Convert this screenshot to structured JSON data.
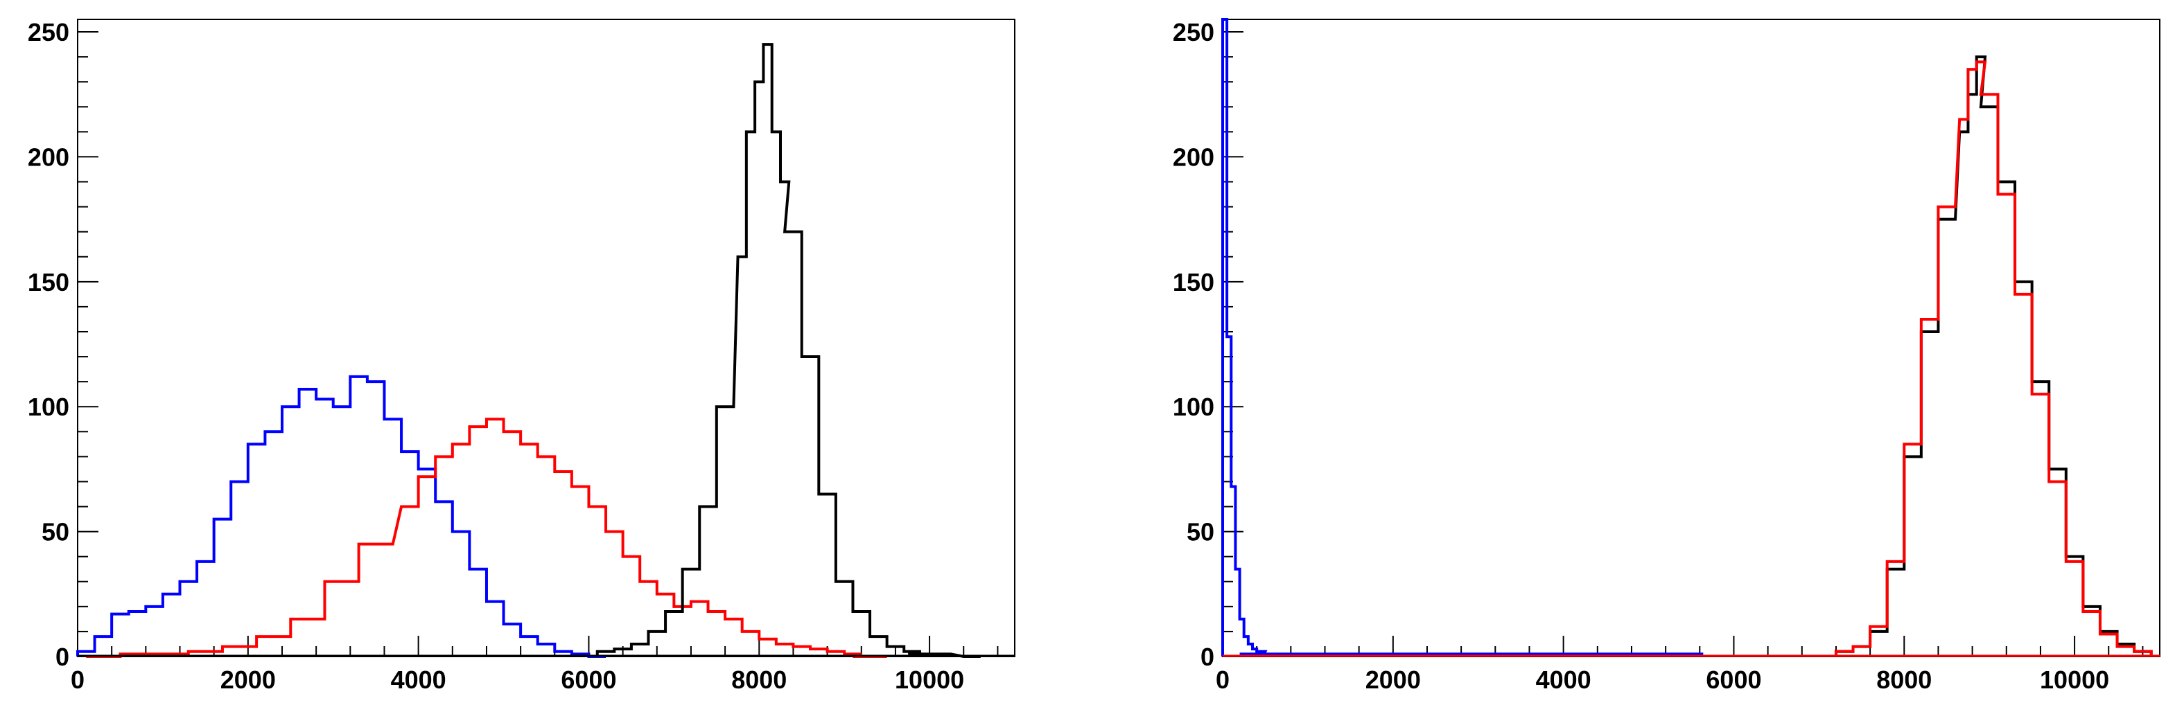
{
  "chart_data": [
    {
      "type": "histogram",
      "title": "",
      "xlabel": "",
      "ylabel": "",
      "xlim": [
        0,
        11000
      ],
      "ylim": [
        0,
        255
      ],
      "x_ticks": [
        0,
        2000,
        4000,
        6000,
        8000,
        10000
      ],
      "y_ticks": [
        0,
        50,
        100,
        150,
        200,
        250
      ],
      "grid": false,
      "legend": "none",
      "series": [
        {
          "color": "#0000ff",
          "bin_width": 50,
          "centers": [
            100,
            300,
            500,
            700,
            900,
            1100,
            1300,
            1500,
            1700,
            1900,
            2100,
            2300,
            2500,
            2700,
            2900,
            3100,
            3300,
            3500,
            3700,
            3900,
            4100,
            4300,
            4500,
            4700,
            4900,
            5100,
            5300,
            5500,
            5700,
            5900,
            6100
          ],
          "values": [
            2,
            8,
            17,
            18,
            20,
            25,
            30,
            38,
            55,
            70,
            85,
            90,
            100,
            107,
            103,
            100,
            112,
            110,
            95,
            82,
            75,
            62,
            50,
            35,
            22,
            13,
            8,
            5,
            2,
            1,
            0
          ]
        },
        {
          "color": "#ff0000",
          "bin_width": 50,
          "centers": [
            300,
            700,
            1100,
            1500,
            1900,
            2300,
            2700,
            3100,
            3500,
            3900,
            4100,
            4300,
            4500,
            4700,
            4900,
            5100,
            5300,
            5500,
            5700,
            5900,
            6100,
            6300,
            6500,
            6700,
            6900,
            7100,
            7300,
            7500,
            7700,
            7900,
            8100,
            8300,
            8500,
            8700,
            8900,
            9100,
            9300
          ],
          "values": [
            0,
            1,
            1,
            2,
            4,
            8,
            15,
            30,
            45,
            60,
            72,
            80,
            85,
            92,
            95,
            90,
            85,
            80,
            74,
            68,
            60,
            50,
            40,
            30,
            25,
            20,
            22,
            18,
            15,
            10,
            7,
            5,
            4,
            3,
            2,
            1,
            0
          ]
        },
        {
          "color": "#000000",
          "bin_width": 50,
          "centers": [
            6200,
            6400,
            6600,
            6800,
            7000,
            7200,
            7400,
            7600,
            7800,
            7900,
            8000,
            8100,
            8200,
            8300,
            8400,
            8600,
            8800,
            9000,
            9200,
            9400,
            9600,
            9800,
            10000,
            10500
          ],
          "values": [
            2,
            3,
            5,
            10,
            18,
            35,
            60,
            100,
            160,
            210,
            230,
            245,
            210,
            190,
            170,
            120,
            65,
            30,
            18,
            8,
            4,
            2,
            1,
            0
          ]
        }
      ]
    },
    {
      "type": "histogram",
      "title": "",
      "xlabel": "",
      "ylabel": "",
      "xlim": [
        0,
        11000
      ],
      "ylim": [
        0,
        255
      ],
      "x_ticks": [
        0,
        2000,
        4000,
        6000,
        8000,
        10000
      ],
      "y_ticks": [
        0,
        50,
        100,
        150,
        200,
        250
      ],
      "grid": false,
      "legend": "none",
      "series": [
        {
          "color": "#0000ff",
          "bin_width": 50,
          "centers": [
            25,
            75,
            125,
            175,
            225,
            275,
            325,
            375,
            425,
            475,
            525,
            600,
            800,
            1700,
            2000,
            5600
          ],
          "values": [
            255,
            128,
            68,
            35,
            15,
            8,
            5,
            3,
            2,
            2,
            1,
            1,
            1,
            1,
            1,
            1
          ]
        },
        {
          "color": "#000000",
          "bin_width": 50,
          "centers": [
            7300,
            7500,
            7700,
            7900,
            8100,
            8300,
            8500,
            8700,
            8800,
            8900,
            9000,
            9200,
            9400,
            9600,
            9800,
            10000,
            10200,
            10400,
            10600,
            10800
          ],
          "values": [
            2,
            4,
            10,
            35,
            80,
            130,
            175,
            210,
            225,
            240,
            220,
            190,
            150,
            110,
            75,
            40,
            20,
            10,
            5,
            2
          ]
        },
        {
          "color": "#ff0000",
          "bin_width": 50,
          "centers": [
            7300,
            7500,
            7700,
            7900,
            8100,
            8300,
            8500,
            8700,
            8800,
            8900,
            9000,
            9200,
            9400,
            9600,
            9800,
            10000,
            10200,
            10400,
            10600,
            10800
          ],
          "values": [
            2,
            4,
            12,
            38,
            85,
            135,
            180,
            215,
            235,
            238,
            225,
            185,
            145,
            105,
            70,
            38,
            18,
            9,
            4,
            2
          ]
        }
      ]
    }
  ]
}
